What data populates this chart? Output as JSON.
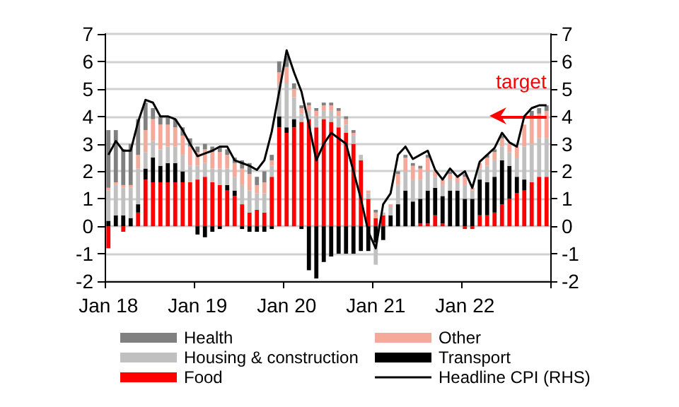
{
  "chart_data": {
    "type": "bar",
    "stacked": true,
    "categories": [
      "Jan 18",
      null,
      null,
      null,
      null,
      null,
      null,
      null,
      null,
      null,
      null,
      null,
      "Jan 19",
      null,
      null,
      null,
      null,
      null,
      null,
      null,
      null,
      null,
      null,
      null,
      "Jan 20",
      null,
      null,
      null,
      null,
      null,
      null,
      null,
      null,
      null,
      null,
      null,
      "Jan 21",
      null,
      null,
      null,
      null,
      null,
      null,
      null,
      null,
      null,
      null,
      null,
      "Jan 22",
      null,
      null,
      null,
      null,
      null,
      null,
      null,
      null,
      null,
      null,
      null
    ],
    "series": [
      {
        "name": "Food",
        "color": "#ff0000",
        "values": [
          -0.8,
          0.0,
          -0.2,
          0.0,
          0.5,
          1.7,
          1.6,
          1.6,
          1.6,
          1.6,
          1.6,
          1.6,
          1.7,
          1.8,
          1.6,
          1.5,
          1.3,
          1.1,
          0.8,
          0.5,
          0.6,
          0.5,
          1.8,
          3.6,
          3.4,
          3.6,
          3.8,
          3.9,
          3.6,
          3.9,
          3.8,
          3.6,
          3.4,
          3.0,
          2.4,
          1.0,
          0.3,
          0.4,
          0.0,
          0.0,
          0.0,
          0.0,
          0.1,
          0.1,
          0.4,
          0.1,
          0.0,
          0.0,
          -0.1,
          -0.1,
          0.4,
          0.4,
          0.5,
          0.8,
          1.0,
          1.2,
          1.3,
          1.6,
          1.8,
          1.8
        ]
      },
      {
        "name": "Transport",
        "color": "#000000",
        "values": [
          0.2,
          0.4,
          0.4,
          0.3,
          0.3,
          0.4,
          0.9,
          0.6,
          0.7,
          0.7,
          0.4,
          0.0,
          -0.3,
          -0.4,
          -0.2,
          -0.1,
          0.2,
          0.2,
          -0.1,
          -0.2,
          -0.2,
          -0.2,
          -0.1,
          0.4,
          0.2,
          0.3,
          -0.1,
          -1.6,
          -1.9,
          -1.3,
          -1.1,
          -1.0,
          -1.0,
          -1.0,
          -0.9,
          -0.9,
          -0.6,
          -0.5,
          0.4,
          0.8,
          1.3,
          0.9,
          0.9,
          1.2,
          1.0,
          1.0,
          1.3,
          1.3,
          1.0,
          1.0,
          1.3,
          1.2,
          1.3,
          1.6,
          1.2,
          0.6,
          0.4,
          0.0,
          0.0,
          0.0
        ]
      },
      {
        "name": "Housing & construction",
        "color": "#c0c0c0",
        "values": [
          1.1,
          1.1,
          1.0,
          1.1,
          1.3,
          0.6,
          0.6,
          0.6,
          0.6,
          0.6,
          0.6,
          0.6,
          0.5,
          0.5,
          0.5,
          0.6,
          0.6,
          0.5,
          0.7,
          0.8,
          0.6,
          0.7,
          0.4,
          1.2,
          1.6,
          0.8,
          0.3,
          0.3,
          0.4,
          0.3,
          0.4,
          0.4,
          0.3,
          0.3,
          0.2,
          0.2,
          -0.8,
          0.1,
          0.3,
          0.7,
          0.7,
          0.8,
          0.7,
          0.7,
          0.4,
          0.4,
          0.4,
          0.3,
          0.5,
          0.3,
          0.4,
          0.6,
          0.6,
          0.5,
          0.5,
          0.7,
          1.2,
          1.4,
          1.4,
          1.4
        ]
      },
      {
        "name": "Other",
        "color": "#f4a99b",
        "values": [
          0.1,
          0.1,
          0.1,
          0.1,
          0.5,
          0.8,
          0.8,
          0.9,
          0.8,
          0.7,
          0.7,
          0.7,
          0.5,
          0.5,
          0.6,
          0.6,
          0.5,
          0.5,
          0.6,
          0.6,
          0.3,
          0.4,
          0.2,
          0.4,
          0.6,
          0.3,
          0.2,
          0.2,
          0.2,
          0.2,
          0.2,
          0.2,
          0.2,
          0.1,
          0.0,
          0.1,
          0.2,
          0.0,
          0.1,
          0.4,
          0.5,
          0.5,
          0.4,
          0.5,
          0.2,
          0.2,
          0.2,
          0.2,
          0.3,
          0.1,
          0.2,
          0.3,
          0.3,
          0.3,
          0.3,
          0.4,
          0.8,
          1.0,
          0.9,
          1.0
        ]
      },
      {
        "name": "Health",
        "color": "#808080",
        "values": [
          2.1,
          1.9,
          1.3,
          1.5,
          1.3,
          1.0,
          0.4,
          0.3,
          0.3,
          0.3,
          0.3,
          0.3,
          0.2,
          0.2,
          0.2,
          0.2,
          0.2,
          0.2,
          0.3,
          0.4,
          0.3,
          0.4,
          0.2,
          0.4,
          0.4,
          0.2,
          0.1,
          0.1,
          0.1,
          0.1,
          0.1,
          0.1,
          0.1,
          0.1,
          0.0,
          0.0,
          0.1,
          0.0,
          0.0,
          0.1,
          0.1,
          0.1,
          0.1,
          0.1,
          0.0,
          0.0,
          0.1,
          0.0,
          0.1,
          0.0,
          0.0,
          0.1,
          0.1,
          0.1,
          0.0,
          0.0,
          0.0,
          0.2,
          0.2,
          0.2
        ]
      },
      {
        "name": "Headline CPI (RHS)",
        "type": "line",
        "axis": "y2",
        "color": "#000000",
        "values": [
          2.6,
          3.1,
          2.75,
          2.75,
          3.8,
          4.6,
          4.5,
          4.0,
          4.0,
          3.9,
          3.5,
          3.0,
          2.55,
          2.65,
          2.75,
          2.9,
          2.9,
          2.4,
          2.3,
          2.2,
          2.05,
          2.4,
          3.45,
          4.9,
          6.4,
          5.6,
          4.9,
          3.7,
          2.4,
          3.0,
          3.4,
          3.2,
          3.0,
          2.0,
          1.0,
          -0.2,
          -0.8,
          0.8,
          1.2,
          2.6,
          2.9,
          2.45,
          2.6,
          2.75,
          2.05,
          1.7,
          2.1,
          1.8,
          2.0,
          1.4,
          2.35,
          2.6,
          2.85,
          3.4,
          3.05,
          2.9,
          4.0,
          4.3,
          4.4,
          4.4
        ]
      }
    ],
    "ylim": [
      -2,
      7
    ],
    "yticks": [
      -2,
      -1,
      0,
      1,
      2,
      3,
      4,
      5,
      6,
      7
    ],
    "y2lim": [
      -2,
      7
    ],
    "y2ticks": [
      -2,
      -1,
      0,
      1,
      2,
      3,
      4,
      5,
      6,
      7
    ],
    "ref_lines": [
      {
        "axis": "y2",
        "value": 4,
        "label": "target",
        "color": "#ff0000"
      }
    ],
    "grid": "y",
    "legend": "bottom",
    "marker": "none",
    "line_style": "solid"
  }
}
